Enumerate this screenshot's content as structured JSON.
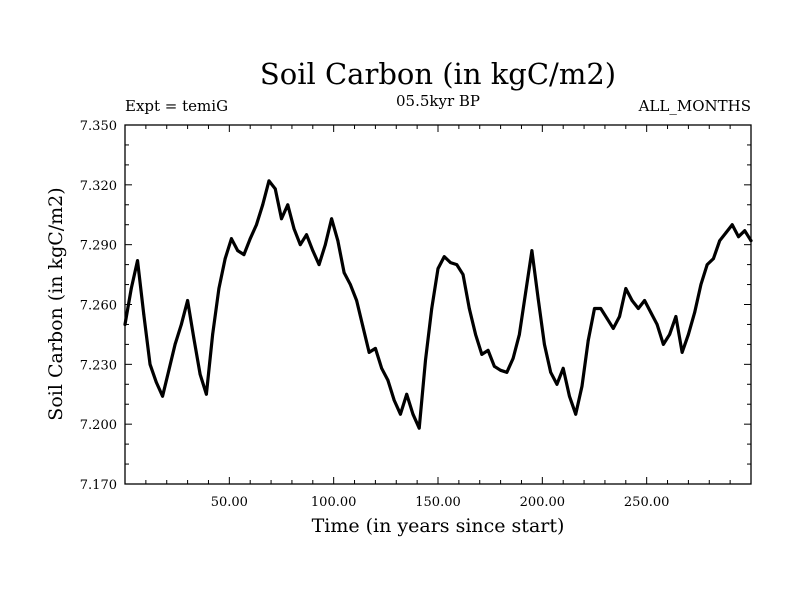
{
  "chart_data": {
    "type": "line",
    "title": "Soil Carbon (in kgC/m2)",
    "subtitle": "05.5kyr BP",
    "annotations": {
      "left": "Expt = temiG",
      "right": "ALL_MONTHS"
    },
    "xlabel": "Time (in years since start)",
    "ylabel": "Soil Carbon (in kgC/m2)",
    "xlim": [
      0,
      300
    ],
    "ylim": [
      7.17,
      7.35
    ],
    "x_ticks": [
      50,
      100,
      150,
      200,
      250
    ],
    "x_tick_labels": [
      "50.00",
      "100.00",
      "150.00",
      "200.00",
      "250.00"
    ],
    "y_ticks": [
      7.17,
      7.2,
      7.23,
      7.26,
      7.29,
      7.32,
      7.35
    ],
    "y_tick_labels": [
      "7.170",
      "7.200",
      "7.230",
      "7.260",
      "7.290",
      "7.320",
      "7.350"
    ],
    "grid": false,
    "series": [
      {
        "name": "Soil Carbon",
        "color": "#000000",
        "x": [
          0,
          3,
          6,
          9,
          12,
          15,
          18,
          21,
          24,
          27,
          30,
          33,
          36,
          39,
          42,
          45,
          48,
          51,
          54,
          57,
          60,
          63,
          66,
          69,
          72,
          75,
          78,
          81,
          84,
          87,
          90,
          93,
          96,
          99,
          102,
          105,
          108,
          111,
          114,
          117,
          120,
          123,
          126,
          129,
          132,
          135,
          138,
          141,
          144,
          147,
          150,
          153,
          156,
          159,
          162,
          165,
          168,
          171,
          174,
          177,
          180,
          183,
          186,
          189,
          192,
          195,
          198,
          201,
          204,
          207,
          210,
          213,
          216,
          219,
          222,
          225,
          228,
          231,
          234,
          237,
          240,
          243,
          246,
          249,
          252,
          255,
          258,
          261,
          264,
          267,
          270,
          273,
          276,
          279,
          282,
          285,
          288,
          291,
          294,
          297,
          300
        ],
        "values": [
          7.25,
          7.268,
          7.282,
          7.255,
          7.23,
          7.221,
          7.214,
          7.227,
          7.24,
          7.25,
          7.262,
          7.243,
          7.225,
          7.215,
          7.245,
          7.268,
          7.283,
          7.293,
          7.287,
          7.285,
          7.293,
          7.3,
          7.31,
          7.322,
          7.318,
          7.303,
          7.31,
          7.298,
          7.29,
          7.295,
          7.287,
          7.28,
          7.29,
          7.303,
          7.292,
          7.276,
          7.27,
          7.262,
          7.249,
          7.236,
          7.238,
          7.228,
          7.222,
          7.212,
          7.205,
          7.215,
          7.205,
          7.198,
          7.232,
          7.258,
          7.278,
          7.284,
          7.281,
          7.28,
          7.275,
          7.258,
          7.245,
          7.235,
          7.237,
          7.229,
          7.227,
          7.226,
          7.233,
          7.245,
          7.266,
          7.287,
          7.263,
          7.24,
          7.226,
          7.22,
          7.228,
          7.214,
          7.205,
          7.219,
          7.242,
          7.258,
          7.258,
          7.253,
          7.248,
          7.254,
          7.268,
          7.262,
          7.258,
          7.262,
          7.256,
          7.25,
          7.24,
          7.245,
          7.254,
          7.236,
          7.245,
          7.256,
          7.27,
          7.28,
          7.283,
          7.292,
          7.296,
          7.3,
          7.294,
          7.297,
          7.292
        ]
      }
    ]
  }
}
